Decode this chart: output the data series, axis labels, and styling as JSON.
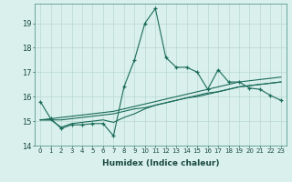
{
  "xlabel": "Humidex (Indice chaleur)",
  "x": [
    0,
    1,
    2,
    3,
    4,
    5,
    6,
    7,
    8,
    9,
    10,
    11,
    12,
    13,
    14,
    15,
    16,
    17,
    18,
    19,
    20,
    21,
    22,
    23
  ],
  "line1": [
    15.8,
    15.1,
    14.7,
    14.85,
    14.85,
    14.9,
    14.9,
    14.4,
    16.4,
    17.5,
    19.0,
    19.6,
    17.6,
    17.2,
    17.2,
    17.0,
    16.3,
    17.1,
    16.6,
    16.6,
    16.35,
    16.3,
    16.05,
    15.85
  ],
  "line2": [
    15.05,
    15.05,
    14.75,
    14.9,
    14.95,
    15.0,
    15.05,
    14.95,
    15.15,
    15.3,
    15.5,
    15.65,
    15.75,
    15.85,
    15.95,
    16.05,
    16.15,
    16.2,
    16.3,
    16.4,
    16.45,
    16.5,
    16.55,
    16.6
  ],
  "line3": [
    15.05,
    15.1,
    15.15,
    15.2,
    15.25,
    15.3,
    15.35,
    15.4,
    15.5,
    15.6,
    15.7,
    15.8,
    15.9,
    16.0,
    16.1,
    16.2,
    16.3,
    16.4,
    16.5,
    16.6,
    16.65,
    16.7,
    16.75,
    16.8
  ],
  "line4": [
    15.05,
    15.05,
    15.05,
    15.1,
    15.15,
    15.2,
    15.25,
    15.3,
    15.4,
    15.5,
    15.55,
    15.65,
    15.75,
    15.85,
    15.95,
    16.0,
    16.1,
    16.2,
    16.3,
    16.4,
    16.45,
    16.5,
    16.55,
    16.6
  ],
  "line_color": "#1a6b5a",
  "bg_color": "#d9f0ec",
  "grid_color": "#b8d8d2",
  "ylim": [
    14.0,
    19.8
  ],
  "yticks": [
    14,
    15,
    16,
    17,
    18,
    19
  ],
  "marker": "+"
}
